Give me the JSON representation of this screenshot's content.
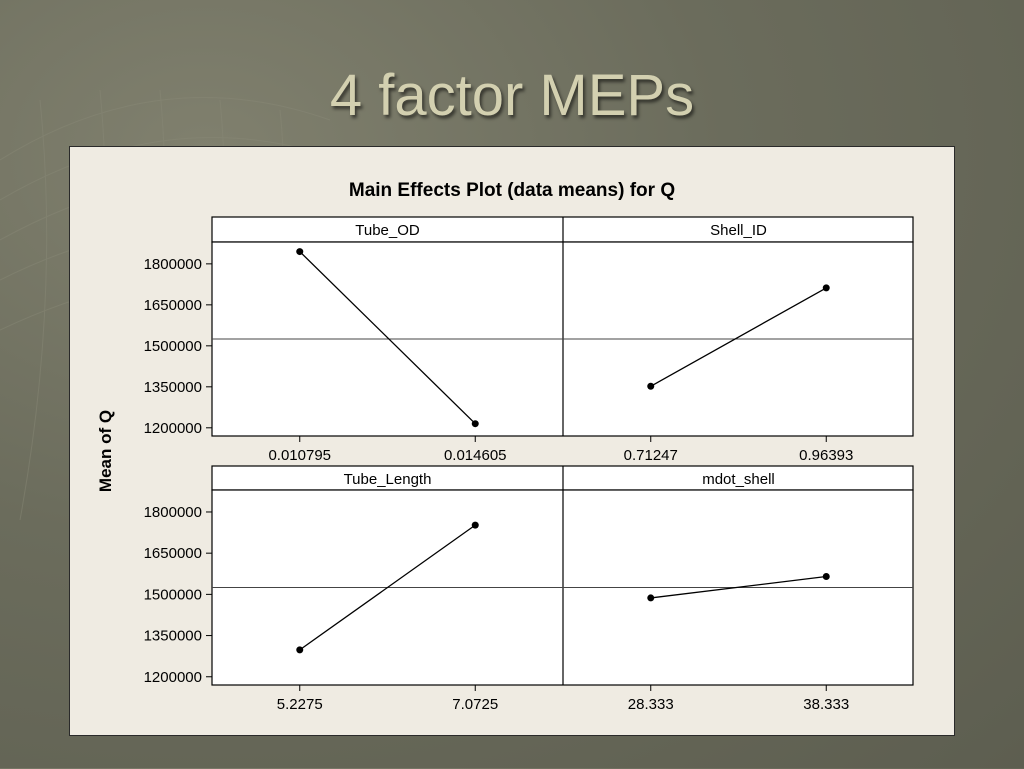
{
  "slide": {
    "title": "4 factor MEPs"
  },
  "colors": {
    "background": "#6b6c5c",
    "title": "#d3d0b0",
    "panel": "#efebe2"
  },
  "chart_data": {
    "type": "line",
    "title": "Main Effects Plot (data means) for Q",
    "ylabel": "Mean of Q",
    "ylim": [
      1170000,
      1880000
    ],
    "yticks": [
      1200000,
      1350000,
      1500000,
      1650000,
      1800000
    ],
    "ytick_labels": [
      "1200000",
      "1350000",
      "1500000",
      "1650000",
      "1800000"
    ],
    "reference_line": 1525000,
    "panels": [
      {
        "factor": "Tube_OD",
        "levels": [
          "0.010795",
          "0.014605"
        ],
        "means": [
          1845000,
          1215000
        ]
      },
      {
        "factor": "Shell_ID",
        "levels": [
          "0.71247",
          "0.96393"
        ],
        "means": [
          1352000,
          1712000
        ]
      },
      {
        "factor": "Tube_Length",
        "levels": [
          "5.2275",
          "7.0725"
        ],
        "means": [
          1298000,
          1752000
        ]
      },
      {
        "factor": "mdot_shell",
        "levels": [
          "28.333",
          "38.333"
        ],
        "means": [
          1487000,
          1565000
        ]
      }
    ]
  }
}
